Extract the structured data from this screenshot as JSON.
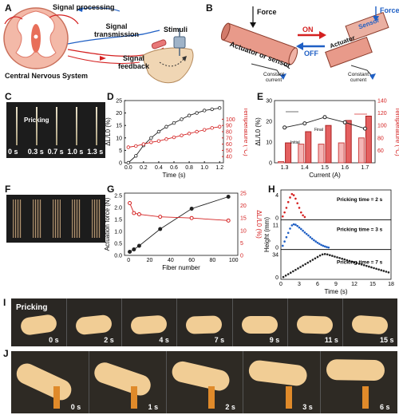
{
  "panels": {
    "A": {
      "label": "A",
      "signal_processing": "Signal processing",
      "signal_transmission_1": "Signal",
      "signal_transmission_2": "transmission",
      "stimuli": "Stimuli",
      "signal_feedback_1": "Signal",
      "signal_feedback_2": "feedback",
      "cns": "Central Nervous System"
    },
    "B": {
      "label": "B",
      "force_left": "Force",
      "force_right": "Force",
      "actuator_or_sensor": "Actuator or sensor",
      "on": "ON",
      "off": "OFF",
      "actuator": "Actuator",
      "sensor": "Sensor",
      "constant_current_1a": "Constant",
      "constant_current_1b": "current",
      "constant_current_2a": "Constant",
      "constant_current_2b": "current",
      "color_on": "#d42020",
      "color_off": "#1f5fc4"
    },
    "C": {
      "label": "C",
      "pricking": "Pricking",
      "times": [
        "0 s",
        "0.3 s",
        "0.7 s",
        "1.0 s",
        "1.3 s"
      ]
    },
    "F": {
      "label": "F"
    },
    "I": {
      "label": "I",
      "pricking": "Pricking",
      "times": [
        "0 s",
        "2 s",
        "4 s",
        "7 s",
        "9 s",
        "11 s",
        "15 s"
      ]
    },
    "J": {
      "label": "J",
      "times": [
        "0 s",
        "1 s",
        "2 s",
        "3 s",
        "6 s"
      ]
    }
  },
  "chart_data": [
    {
      "panel": "D",
      "type": "line",
      "xlabel": "Time (s)",
      "ylabel_left": "ΔL/L0 (%)",
      "ylabel_right": "Temperature (°C)",
      "xlim": [
        -0.05,
        1.25
      ],
      "xticks": [
        0.0,
        0.2,
        0.4,
        0.6,
        0.8,
        1.0,
        1.2
      ],
      "ylim_left": [
        0,
        25
      ],
      "yticks_left": [
        0,
        5,
        10,
        15,
        20,
        25
      ],
      "ylim_right": [
        30,
        130
      ],
      "yticks_right": [
        40,
        50,
        60,
        70,
        80,
        90,
        100
      ],
      "series": [
        {
          "axis": "left",
          "color": "#222222",
          "x": [
            0.0,
            0.1,
            0.2,
            0.3,
            0.4,
            0.5,
            0.6,
            0.7,
            0.8,
            0.9,
            1.0,
            1.1,
            1.2
          ],
          "y": [
            0,
            2.8,
            7,
            10,
            12.5,
            14.5,
            16,
            17.5,
            19,
            20,
            21,
            21.5,
            22
          ]
        },
        {
          "axis": "right",
          "color": "#d42020",
          "x": [
            0.0,
            0.1,
            0.2,
            0.3,
            0.4,
            0.5,
            0.6,
            0.7,
            0.8,
            0.9,
            1.0,
            1.1,
            1.2
          ],
          "y": [
            55,
            57,
            60,
            63,
            65,
            68,
            71,
            74,
            77,
            80,
            83,
            86,
            88
          ]
        }
      ]
    },
    {
      "panel": "E",
      "type": "bar",
      "xlabel": "Current (A)",
      "ylabel_left": "ΔL/L0 (%)",
      "ylabel_right": "Temperature (°C)",
      "categories": [
        "1.3",
        "1.4",
        "1.5",
        "1.6",
        "1.7"
      ],
      "ylim_left": [
        0,
        30
      ],
      "yticks_left": [
        0,
        10,
        20,
        30
      ],
      "ylim_right": [
        40,
        140
      ],
      "yticks_right": [
        60,
        80,
        100,
        120,
        140
      ],
      "strain": [
        17,
        19,
        22,
        19.5,
        16.5
      ],
      "temp_initial": [
        42,
        70,
        70,
        72,
        80
      ],
      "temp_final": [
        72,
        90,
        100,
        108,
        115
      ],
      "legend_initial": "Initial",
      "legend_final": "Final",
      "bar_color_initial": "#f4b6b6",
      "bar_color_final": "#e46060"
    },
    {
      "panel": "G",
      "type": "line",
      "xlabel": "Fiber number",
      "ylabel_left": "Actuation force (N)",
      "ylabel_right": "ΔL/L0 (%)",
      "xlim": [
        -4,
        104
      ],
      "xticks": [
        0,
        20,
        40,
        60,
        80,
        100
      ],
      "ylim_left": [
        0,
        2.6
      ],
      "yticks_left": [
        0,
        0.5,
        1.0,
        1.5,
        2.0,
        2.5
      ],
      "ylim_right": [
        0,
        25
      ],
      "yticks_right": [
        0,
        5,
        10,
        15,
        20,
        25
      ],
      "series": [
        {
          "axis": "left",
          "color": "#222222",
          "x": [
            1,
            5,
            10,
            30,
            60,
            95
          ],
          "y": [
            0.15,
            0.25,
            0.4,
            1.1,
            1.95,
            2.45
          ]
        },
        {
          "axis": "right",
          "color": "#d42020",
          "x": [
            1,
            5,
            10,
            30,
            60,
            95
          ],
          "y": [
            21,
            17,
            16.5,
            15.5,
            15,
            14
          ]
        }
      ]
    },
    {
      "panel": "H",
      "type": "scatter",
      "xlabel": "Time (s)",
      "ylabel": "Height (mm)",
      "xlim": [
        0,
        18
      ],
      "xticks": [
        0,
        3,
        6,
        9,
        12,
        15,
        18
      ],
      "subplots": [
        {
          "label": "Pricking time = 2 s",
          "color": "#d42020",
          "ylim": [
            0,
            4.5
          ],
          "ytick": "4",
          "x": [
            0.3,
            0.6,
            0.9,
            1.2,
            1.5,
            1.8,
            2.1,
            2.4,
            2.7,
            3.0,
            3.3,
            3.6,
            3.9
          ],
          "y": [
            0.3,
            1.0,
            1.8,
            2.8,
            3.6,
            4.2,
            4.0,
            3.4,
            2.6,
            1.8,
            1.0,
            0.5,
            0.2
          ]
        },
        {
          "label": "Pricking time = 3 s",
          "color": "#1f5fc4",
          "ylim": [
            0,
            12
          ],
          "ytick": "11",
          "x": [
            0.3,
            0.6,
            0.9,
            1.2,
            1.5,
            1.8,
            2.1,
            2.4,
            2.7,
            3.0,
            3.3,
            3.6,
            3.9,
            4.2,
            4.5,
            4.8,
            5.1,
            5.4,
            5.7,
            6.0,
            6.3,
            6.6,
            6.9,
            7.2,
            7.5,
            7.8
          ],
          "y": [
            1,
            3,
            5,
            7,
            9,
            10.5,
            11,
            10.8,
            10.2,
            9.5,
            8.8,
            8,
            7.2,
            6.5,
            5.8,
            5,
            4.3,
            3.6,
            3,
            2.4,
            1.9,
            1.4,
            1,
            0.7,
            0.4,
            0.2
          ]
        },
        {
          "label": "Pricking time = 7 s",
          "color": "#222222",
          "ylim": [
            0,
            36
          ],
          "ytick": "34",
          "x": [
            0.4,
            0.8,
            1.2,
            1.6,
            2.0,
            2.4,
            2.8,
            3.2,
            3.6,
            4.0,
            4.4,
            4.8,
            5.2,
            5.6,
            6.0,
            6.4,
            6.8,
            7.2,
            7.6,
            8.0,
            8.4,
            8.8,
            9.2,
            9.6,
            10.0,
            10.4,
            10.8,
            11.2,
            11.6,
            12.0,
            12.4,
            12.8,
            13.2,
            13.6,
            14.0,
            14.4,
            14.8,
            15.2,
            15.6,
            16.0,
            16.4,
            16.8,
            17.2,
            17.6
          ],
          "y": [
            1,
            3,
            5,
            7,
            9,
            11,
            13,
            15,
            17,
            19,
            21,
            23,
            25,
            27,
            29,
            31,
            32.5,
            33,
            32.5,
            31.5,
            30.5,
            29.5,
            28.5,
            27.5,
            26.5,
            25.5,
            24.5,
            23.5,
            22.5,
            21.5,
            20.5,
            19.5,
            18.5,
            17.5,
            16.5,
            15.5,
            14.5,
            13.5,
            12.5,
            11.5,
            10.5,
            9.5,
            8.5,
            7.5
          ]
        }
      ]
    }
  ]
}
